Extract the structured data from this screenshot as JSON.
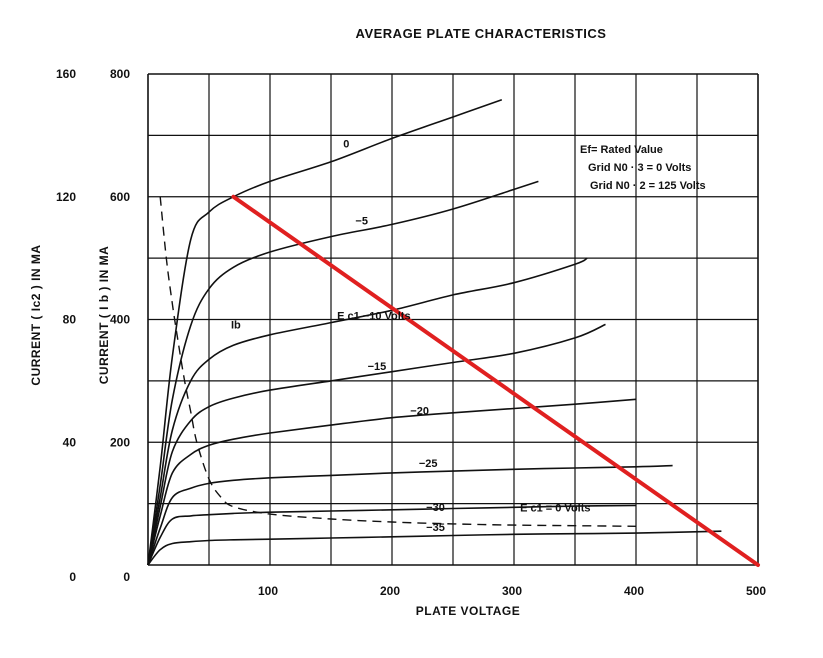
{
  "chart_data": {
    "type": "line",
    "title": "AVERAGE PLATE CHARACTERISTICS",
    "xlabel": "PLATE VOLTAGE",
    "ylabel_left_outer": "CURRENT ( Ic2 ) IN MA",
    "ylabel_left_inner": "CURRENT ( I b ) IN MA",
    "xlim": [
      0,
      500
    ],
    "ylim_ib": [
      0,
      800
    ],
    "ylim_ic2": [
      0,
      160
    ],
    "x_ticks": [
      {
        "value": 100,
        "label": "100"
      },
      {
        "value": 200,
        "label": "200"
      },
      {
        "value": 300,
        "label": "300"
      },
      {
        "value": 400,
        "label": "400"
      },
      {
        "value": 500,
        "label": "500"
      }
    ],
    "ib_ticks": [
      {
        "value": 0,
        "label": "0"
      },
      {
        "value": 200,
        "label": "200"
      },
      {
        "value": 400,
        "label": "400"
      },
      {
        "value": 600,
        "label": "600"
      },
      {
        "value": 800,
        "label": "800"
      }
    ],
    "ic2_ticks": [
      {
        "value": 0,
        "label": "0"
      },
      {
        "value": 40,
        "label": "40"
      },
      {
        "value": 80,
        "label": "80"
      },
      {
        "value": 120,
        "label": "120"
      },
      {
        "value": 160,
        "label": "160"
      }
    ],
    "grid": true,
    "series": [
      {
        "name": "0",
        "label": "0",
        "axis": "ib",
        "points": [
          [
            0,
            0
          ],
          [
            10,
            160
          ],
          [
            20,
            340
          ],
          [
            35,
            530
          ],
          [
            50,
            575
          ],
          [
            70,
            600
          ],
          [
            100,
            625
          ],
          [
            150,
            657
          ],
          [
            200,
            695
          ],
          [
            250,
            730
          ],
          [
            290,
            758
          ]
        ]
      },
      {
        "name": "-5",
        "label": "−5",
        "axis": "ib",
        "points": [
          [
            0,
            0
          ],
          [
            10,
            130
          ],
          [
            20,
            270
          ],
          [
            35,
            390
          ],
          [
            50,
            450
          ],
          [
            70,
            485
          ],
          [
            100,
            510
          ],
          [
            150,
            535
          ],
          [
            200,
            555
          ],
          [
            250,
            580
          ],
          [
            300,
            612
          ],
          [
            320,
            625
          ]
        ]
      },
      {
        "name": "-10",
        "label": "E c1   −10  Volts",
        "axis": "ib",
        "points": [
          [
            0,
            0
          ],
          [
            10,
            110
          ],
          [
            20,
            220
          ],
          [
            35,
            300
          ],
          [
            50,
            335
          ],
          [
            70,
            358
          ],
          [
            100,
            375
          ],
          [
            150,
            395
          ],
          [
            200,
            415
          ],
          [
            250,
            440
          ],
          [
            300,
            460
          ],
          [
            350,
            490
          ],
          [
            360,
            500
          ]
        ]
      },
      {
        "name": "-15",
        "label": "−15",
        "axis": "ib",
        "points": [
          [
            0,
            0
          ],
          [
            10,
            95
          ],
          [
            20,
            185
          ],
          [
            35,
            235
          ],
          [
            50,
            258
          ],
          [
            70,
            272
          ],
          [
            100,
            285
          ],
          [
            150,
            300
          ],
          [
            200,
            315
          ],
          [
            250,
            330
          ],
          [
            300,
            345
          ],
          [
            350,
            370
          ],
          [
            375,
            392
          ]
        ]
      },
      {
        "name": "-20",
        "label": "−20",
        "axis": "ib",
        "points": [
          [
            0,
            0
          ],
          [
            10,
            80
          ],
          [
            20,
            150
          ],
          [
            35,
            180
          ],
          [
            50,
            195
          ],
          [
            70,
            205
          ],
          [
            100,
            215
          ],
          [
            150,
            228
          ],
          [
            200,
            240
          ],
          [
            250,
            248
          ],
          [
            300,
            255
          ],
          [
            350,
            262
          ],
          [
            400,
            270
          ]
        ]
      },
      {
        "name": "-25",
        "label": "−25",
        "axis": "ib",
        "points": [
          [
            0,
            0
          ],
          [
            10,
            60
          ],
          [
            20,
            110
          ],
          [
            35,
            125
          ],
          [
            50,
            133
          ],
          [
            70,
            138
          ],
          [
            100,
            142
          ],
          [
            150,
            146
          ],
          [
            200,
            150
          ],
          [
            250,
            153
          ],
          [
            300,
            156
          ],
          [
            350,
            158
          ],
          [
            400,
            160
          ],
          [
            430,
            162
          ]
        ]
      },
      {
        "name": "-30",
        "label": "−30",
        "axis": "ib",
        "points": [
          [
            0,
            0
          ],
          [
            10,
            45
          ],
          [
            20,
            75
          ],
          [
            35,
            80
          ],
          [
            50,
            82
          ],
          [
            70,
            84
          ],
          [
            100,
            86
          ],
          [
            150,
            88
          ],
          [
            200,
            90
          ],
          [
            250,
            92
          ],
          [
            300,
            94
          ],
          [
            350,
            96
          ],
          [
            400,
            97
          ]
        ]
      },
      {
        "name": "-35",
        "label": "−35",
        "axis": "ib",
        "points": [
          [
            0,
            0
          ],
          [
            10,
            25
          ],
          [
            20,
            35
          ],
          [
            35,
            38
          ],
          [
            50,
            40
          ],
          [
            70,
            41
          ],
          [
            100,
            42
          ],
          [
            150,
            44
          ],
          [
            200,
            46
          ],
          [
            250,
            48
          ],
          [
            300,
            50
          ],
          [
            350,
            51
          ],
          [
            400,
            52
          ],
          [
            470,
            55
          ]
        ]
      },
      {
        "name": "Ic2 (Ec1 = 0)",
        "label": "E c1 = 0   Volts",
        "axis": "ic2",
        "dashed": true,
        "points": [
          [
            10,
            120
          ],
          [
            15,
            100
          ],
          [
            20,
            85
          ],
          [
            25,
            72
          ],
          [
            30,
            60
          ],
          [
            35,
            50
          ],
          [
            40,
            40
          ],
          [
            50,
            28
          ],
          [
            60,
            22
          ],
          [
            70,
            19
          ],
          [
            100,
            16.6
          ],
          [
            150,
            15
          ],
          [
            200,
            14
          ],
          [
            250,
            13.4
          ],
          [
            300,
            13
          ],
          [
            350,
            12.8
          ],
          [
            400,
            12.6
          ]
        ]
      }
    ],
    "load_line": {
      "points": [
        [
          70,
          600
        ],
        [
          500,
          0
        ]
      ],
      "color": "#e02020"
    },
    "curve_annotations": [
      {
        "text": "Ib",
        "x": 68,
        "y": 385
      }
    ],
    "note_lines": [
      "Ef= Rated  Value",
      "Grid  N0 · 3 = 0  Volts",
      "Grid  N0 · 2 = 125  Volts"
    ],
    "colors": {
      "line": "#111111",
      "grid": "#111111",
      "load_line": "#e02020"
    }
  }
}
